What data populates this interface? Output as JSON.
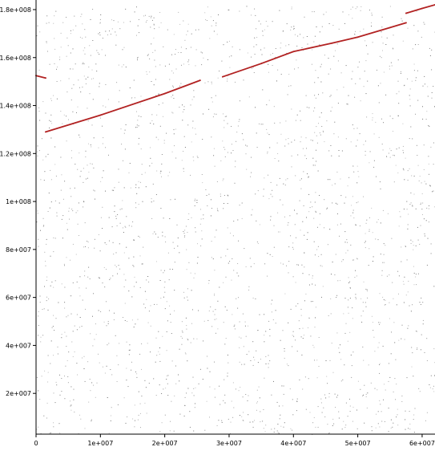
{
  "chart_data": {
    "type": "scatter",
    "title": "",
    "xlabel": "",
    "ylabel": "",
    "xlim": [
      0,
      62000000
    ],
    "ylim": [
      3000000,
      182000000
    ],
    "grid": false,
    "x_ticks": [
      {
        "value": 0,
        "label": "0"
      },
      {
        "value": 10000000,
        "label": "1e+007"
      },
      {
        "value": 20000000,
        "label": "2e+007"
      },
      {
        "value": 30000000,
        "label": "3e+007"
      },
      {
        "value": 40000000,
        "label": "4e+007"
      },
      {
        "value": 50000000,
        "label": "5e+007"
      },
      {
        "value": 60000000,
        "label": "6e+007"
      }
    ],
    "y_ticks": [
      {
        "value": 20000000,
        "label": "2e+007"
      },
      {
        "value": 40000000,
        "label": "4e+007"
      },
      {
        "value": 60000000,
        "label": "6e+007"
      },
      {
        "value": 80000000,
        "label": "8e+007"
      },
      {
        "value": 100000000,
        "label": "1e+008"
      },
      {
        "value": 120000000,
        "label": "1.2e+008"
      },
      {
        "value": 140000000,
        "label": "1.4e+008"
      },
      {
        "value": 160000000,
        "label": "1.6e+008"
      },
      {
        "value": 180000000,
        "label": "1.8e+008"
      }
    ],
    "colors": {
      "alignment": "#b22222",
      "noise": "#555555",
      "axis": "#000000"
    },
    "series": [
      {
        "x": [
          0,
          1500000
        ],
        "y": [
          152500000,
          151500000
        ]
      },
      {
        "x": [
          1500000,
          10000000,
          20000000,
          24000000,
          25500000
        ],
        "y": [
          129000000,
          136000000,
          145000000,
          149000000,
          150500000
        ]
      },
      {
        "x": [
          29000000,
          35000000,
          40000000,
          46000000,
          50000000,
          55000000,
          57500000
        ],
        "y": [
          152000000,
          157500000,
          162500000,
          166000000,
          168500000,
          172500000,
          174500000
        ]
      },
      {
        "x": [
          57500000,
          60000000,
          62000000
        ],
        "y": [
          178500000,
          180500000,
          182000000
        ]
      }
    ],
    "noise_points": {
      "count": 2200,
      "x_range": [
        0,
        62000000
      ],
      "y_range": [
        3000000,
        182000000
      ]
    }
  }
}
